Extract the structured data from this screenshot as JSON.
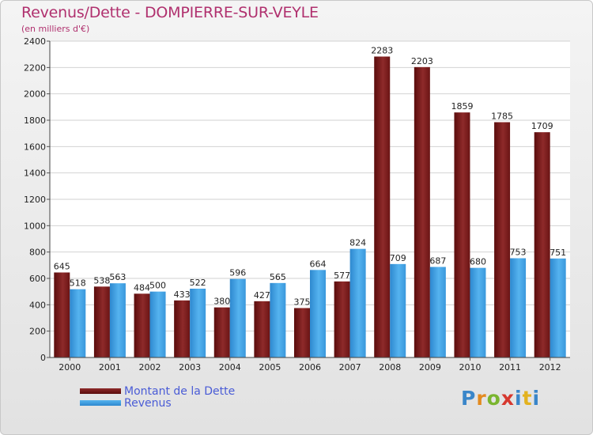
{
  "header": {
    "title": "Revenus/Dette - DOMPIERRE-SUR-VEYLE",
    "subtitle": "(en milliers d'€)"
  },
  "legend": {
    "debt_label": "Montant de la Dette",
    "revenue_label": "Revenus"
  },
  "logo": {
    "text": "Proxiti"
  },
  "colors": {
    "debt": "#7a1b1b",
    "revenue": "#3e9ee0",
    "title": "#b0306e",
    "legend_text": "#4a5cd6"
  },
  "chart_data": {
    "type": "bar",
    "title": "Revenus/Dette - DOMPIERRE-SUR-VEYLE",
    "subtitle": "(en milliers d'€)",
    "xlabel": "",
    "ylabel": "",
    "categories": [
      "2000",
      "2001",
      "2002",
      "2003",
      "2004",
      "2005",
      "2006",
      "2007",
      "2008",
      "2009",
      "2010",
      "2011",
      "2012"
    ],
    "series": [
      {
        "name": "Montant de la Dette",
        "values": [
          645,
          538,
          484,
          433,
          380,
          427,
          375,
          577,
          2283,
          2203,
          1859,
          1785,
          1709
        ]
      },
      {
        "name": "Revenus",
        "values": [
          518,
          563,
          500,
          522,
          596,
          565,
          664,
          824,
          709,
          687,
          680,
          753,
          751
        ]
      }
    ],
    "yticks": [
      0,
      200,
      400,
      600,
      800,
      1000,
      1200,
      1400,
      1600,
      1800,
      2000,
      2200,
      2400
    ],
    "ylim": [
      0,
      2400
    ],
    "grid": true,
    "legend_position": "bottom-left"
  }
}
